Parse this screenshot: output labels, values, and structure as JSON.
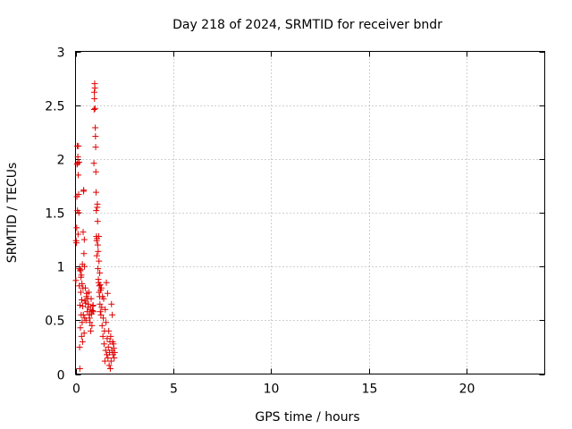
{
  "chart_data": {
    "type": "scatter",
    "title": "Day 218 of 2024, SRMTID for receiver bndr",
    "xlabel": "GPS time / hours",
    "ylabel": "SRMTID / TECUs",
    "xlim": [
      0,
      24
    ],
    "ylim": [
      0,
      3
    ],
    "xticks": [
      0,
      5,
      10,
      15,
      20
    ],
    "xtick_labels": [
      "0",
      "5",
      "10",
      "15",
      "20"
    ],
    "yticks": [
      0,
      0.5,
      1,
      1.5,
      2,
      2.5,
      3
    ],
    "ytick_labels": [
      "0",
      "0.5",
      "1",
      "1.5",
      "2",
      "2.5",
      "3"
    ],
    "grid": true,
    "marker": "+",
    "color": "#e00000",
    "series": [
      {
        "name": "SRMTID",
        "points": [
          [
            0.02,
            0.87
          ],
          [
            0.03,
            1.24
          ],
          [
            0.05,
            1.22
          ],
          [
            0.06,
            1.36
          ],
          [
            0.07,
            1.65
          ],
          [
            0.08,
            1.95
          ],
          [
            0.09,
            2.12
          ],
          [
            0.1,
            1.52
          ],
          [
            0.11,
            1.96
          ],
          [
            0.12,
            2.02
          ],
          [
            0.13,
            1.3
          ],
          [
            0.14,
            1.85
          ],
          [
            0.15,
            2.12
          ],
          [
            0.16,
            1.67
          ],
          [
            0.17,
            1.5
          ],
          [
            0.18,
            1.97
          ],
          [
            0.19,
            0.82
          ],
          [
            0.2,
            0.98
          ],
          [
            0.21,
            0.25
          ],
          [
            0.22,
            0.05
          ],
          [
            0.23,
            0.64
          ],
          [
            0.24,
            0.96
          ],
          [
            0.25,
            0.43
          ],
          [
            0.26,
            0.97
          ],
          [
            0.27,
            0.76
          ],
          [
            0.28,
            0.9
          ],
          [
            0.29,
            0.55
          ],
          [
            0.3,
            0.92
          ],
          [
            0.31,
            0.35
          ],
          [
            0.32,
            0.69
          ],
          [
            0.33,
            0.84
          ],
          [
            0.34,
            0.48
          ],
          [
            0.35,
            1.02
          ],
          [
            0.36,
            0.3
          ],
          [
            0.37,
            0.63
          ],
          [
            0.38,
            0.8
          ],
          [
            0.39,
            1.32
          ],
          [
            0.4,
            0.55
          ],
          [
            0.41,
            1.7
          ],
          [
            0.42,
            1.71
          ],
          [
            0.43,
            1.12
          ],
          [
            0.44,
            0.38
          ],
          [
            0.45,
            1.25
          ],
          [
            0.46,
            1.0
          ],
          [
            0.47,
            0.52
          ],
          [
            0.48,
            0.68
          ],
          [
            0.5,
            0.8
          ],
          [
            0.52,
            0.66
          ],
          [
            0.54,
            0.5
          ],
          [
            0.56,
            0.72
          ],
          [
            0.58,
            0.75
          ],
          [
            0.6,
            0.58
          ],
          [
            0.62,
            0.7
          ],
          [
            0.64,
            0.62
          ],
          [
            0.66,
            0.65
          ],
          [
            0.68,
            0.76
          ],
          [
            0.7,
            0.55
          ],
          [
            0.72,
            0.52
          ],
          [
            0.74,
            0.48
          ],
          [
            0.76,
            0.6
          ],
          [
            0.78,
            0.4
          ],
          [
            0.8,
            0.7
          ],
          [
            0.82,
            0.56
          ],
          [
            0.84,
            0.45
          ],
          [
            0.86,
            0.59
          ],
          [
            0.88,
            0.63
          ],
          [
            0.9,
            0.64
          ],
          [
            0.92,
            0.58
          ],
          [
            0.94,
            1.96
          ],
          [
            0.95,
            2.46
          ],
          [
            0.96,
            2.62
          ],
          [
            0.97,
            2.56
          ],
          [
            0.98,
            2.7
          ],
          [
            0.99,
            2.66
          ],
          [
            1.0,
            2.47
          ],
          [
            1.01,
            2.29
          ],
          [
            1.02,
            2.21
          ],
          [
            1.03,
            2.11
          ],
          [
            1.04,
            1.88
          ],
          [
            1.05,
            1.69
          ],
          [
            1.06,
            1.52
          ],
          [
            1.07,
            1.28
          ],
          [
            1.08,
            1.24
          ],
          [
            1.09,
            1.1
          ],
          [
            1.1,
            1.26
          ],
          [
            1.11,
            1.55
          ],
          [
            1.12,
            1.58
          ],
          [
            1.13,
            1.42
          ],
          [
            1.14,
            1.2
          ],
          [
            1.15,
            0.98
          ],
          [
            1.16,
            1.14
          ],
          [
            1.17,
            0.88
          ],
          [
            1.18,
            0.85
          ],
          [
            1.19,
            1.28
          ],
          [
            1.2,
            1.05
          ],
          [
            1.21,
            0.76
          ],
          [
            1.22,
            0.82
          ],
          [
            1.23,
            0.72
          ],
          [
            1.24,
            0.94
          ],
          [
            1.25,
            0.65
          ],
          [
            1.26,
            0.83
          ],
          [
            1.27,
            0.58
          ],
          [
            1.28,
            0.78
          ],
          [
            1.3,
            0.55
          ],
          [
            1.32,
            0.8
          ],
          [
            1.34,
            0.62
          ],
          [
            1.36,
            0.45
          ],
          [
            1.38,
            0.72
          ],
          [
            1.4,
            0.35
          ],
          [
            1.42,
            0.52
          ],
          [
            1.44,
            0.7
          ],
          [
            1.46,
            0.28
          ],
          [
            1.48,
            0.4
          ],
          [
            1.5,
            0.12
          ],
          [
            1.52,
            0.6
          ],
          [
            1.54,
            0.22
          ],
          [
            1.56,
            0.48
          ],
          [
            1.58,
            0.85
          ],
          [
            1.6,
            0.18
          ],
          [
            1.62,
            0.33
          ],
          [
            1.64,
            0.75
          ],
          [
            1.66,
            0.15
          ],
          [
            1.68,
            0.25
          ],
          [
            1.7,
            0.4
          ],
          [
            1.72,
            0.08
          ],
          [
            1.74,
            0.2
          ],
          [
            1.76,
            0.3
          ],
          [
            1.78,
            0.05
          ],
          [
            1.8,
            0.35
          ],
          [
            1.82,
            0.12
          ],
          [
            1.84,
            0.65
          ],
          [
            1.86,
            0.22
          ],
          [
            1.88,
            0.55
          ],
          [
            1.9,
            0.3
          ],
          [
            1.92,
            0.18
          ],
          [
            1.94,
            0.28
          ],
          [
            1.96,
            0.24
          ],
          [
            1.98,
            0.15
          ],
          [
            2.0,
            0.2
          ]
        ]
      }
    ]
  }
}
